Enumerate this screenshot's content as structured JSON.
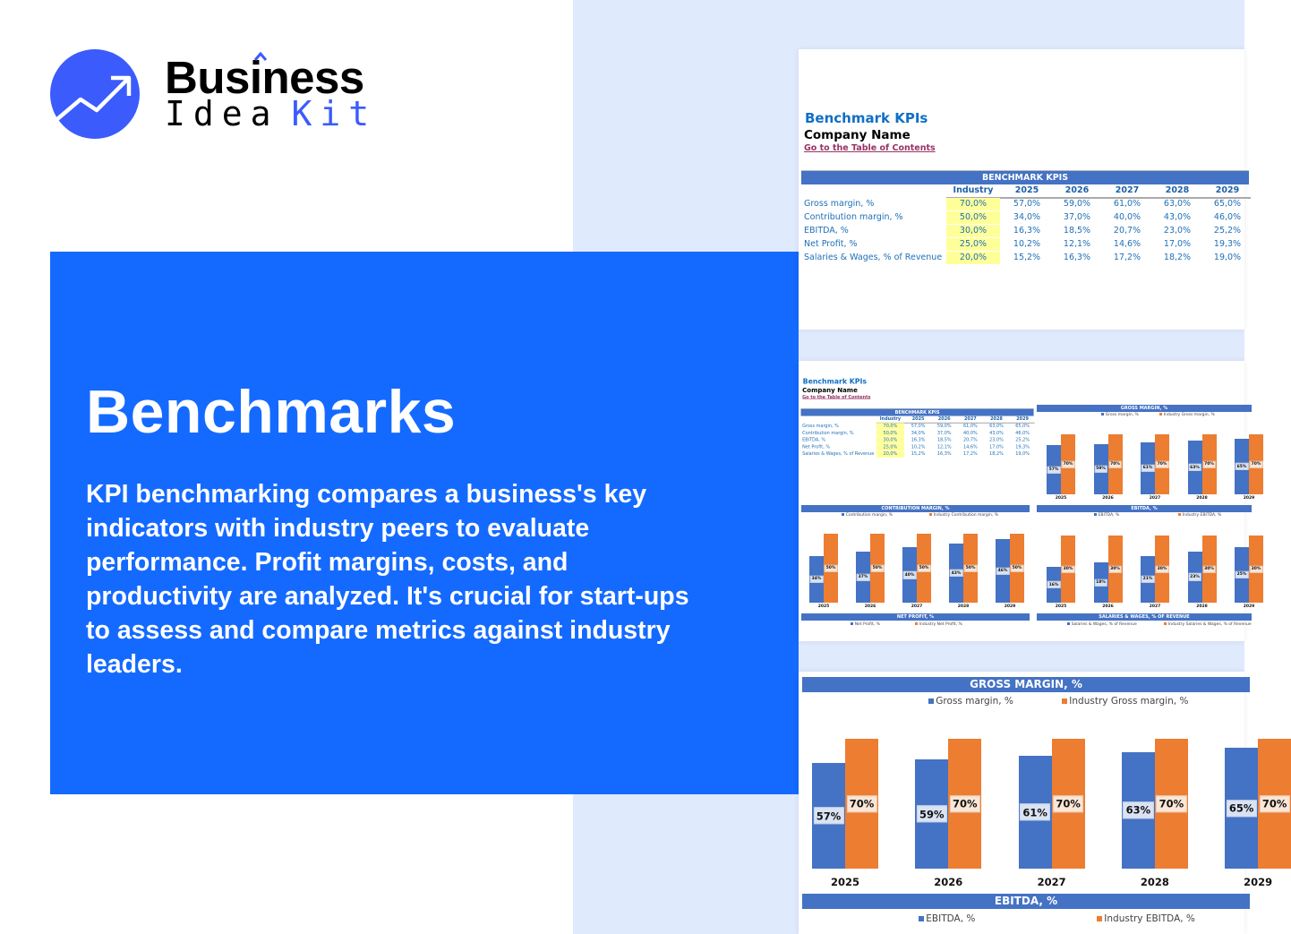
{
  "brand": {
    "line1": "Business",
    "line2_a": "Idea",
    "line2_b": "Kit",
    "logo_icon": "trending-up-arrow-icon",
    "accent_color": "#3b5bfd"
  },
  "hero": {
    "title": "Benchmarks",
    "description": "KPI benchmarking compares a business's key indicators with industry peers to evaluate performance. Profit margins, costs, and productivity are analyzed. It's crucial for start-ups to assess and compare metrics against industry leaders.",
    "background_color": "#146aff"
  },
  "sheet": {
    "title": "Benchmark KPIs",
    "company": "Company Name",
    "toc_link": "Go to the Table of Contents",
    "table": {
      "header": "BENCHMARK KPIS",
      "columns": [
        "Industry",
        "2025",
        "2026",
        "2027",
        "2028",
        "2029"
      ],
      "rows": [
        {
          "label": "Gross margin, %",
          "values": [
            "70,0%",
            "57,0%",
            "59,0%",
            "61,0%",
            "63,0%",
            "65,0%"
          ]
        },
        {
          "label": "Contribution margin, %",
          "values": [
            "50,0%",
            "34,0%",
            "37,0%",
            "40,0%",
            "43,0%",
            "46,0%"
          ]
        },
        {
          "label": "EBITDA, %",
          "values": [
            "30,0%",
            "16,3%",
            "18,5%",
            "20,7%",
            "23,0%",
            "25,2%"
          ]
        },
        {
          "label": "Net Profit, %",
          "values": [
            "25,0%",
            "10,2%",
            "12,1%",
            "14,6%",
            "17,0%",
            "19,3%"
          ]
        },
        {
          "label": "Salaries & Wages, % of Revenue",
          "values": [
            "20,0%",
            "15,2%",
            "16,3%",
            "17,2%",
            "18,2%",
            "19,0%"
          ]
        }
      ]
    }
  },
  "chart_data": [
    {
      "type": "bar",
      "title": "GROSS MARGIN, %",
      "categories": [
        "2025",
        "2026",
        "2027",
        "2028",
        "2029"
      ],
      "series": [
        {
          "name": "Gross margin, %",
          "values": [
            57,
            59,
            61,
            63,
            65
          ],
          "color": "#4472c4"
        },
        {
          "name": "Industry Gross margin, %",
          "values": [
            70,
            70,
            70,
            70,
            70
          ],
          "color": "#ed7d31"
        }
      ]
    },
    {
      "type": "bar",
      "title": "CONTRIBUTION MARGIN, %",
      "categories": [
        "2025",
        "2026",
        "2027",
        "2028",
        "2029"
      ],
      "series": [
        {
          "name": "Contribution margin, %",
          "values": [
            34,
            37,
            40,
            43,
            46
          ],
          "color": "#4472c4"
        },
        {
          "name": "Industry Contribution margin, %",
          "values": [
            50,
            50,
            50,
            50,
            50
          ],
          "color": "#ed7d31"
        }
      ]
    },
    {
      "type": "bar",
      "title": "EBITDA, %",
      "categories": [
        "2025",
        "2026",
        "2027",
        "2028",
        "2029"
      ],
      "series": [
        {
          "name": "EBITDA, %",
          "values": [
            16,
            18,
            21,
            23,
            25
          ],
          "color": "#4472c4"
        },
        {
          "name": "Industry EBITDA, %",
          "values": [
            30,
            30,
            30,
            30,
            30
          ],
          "color": "#ed7d31"
        }
      ]
    },
    {
      "type": "bar",
      "title": "NET PROFIT, %",
      "series": [
        {
          "name": "Net Profit, %",
          "color": "#4472c4"
        },
        {
          "name": "Industry Net Profit, %",
          "color": "#ed7d31"
        }
      ]
    },
    {
      "type": "bar",
      "title": "SALARIES & WAGES, % OF REVENUE",
      "series": [
        {
          "name": "Salaries & Wages, % of Revenue",
          "color": "#4472c4"
        },
        {
          "name": "Industry Salaries & Wages, % of Revenue",
          "color": "#ed7d31"
        }
      ]
    }
  ]
}
